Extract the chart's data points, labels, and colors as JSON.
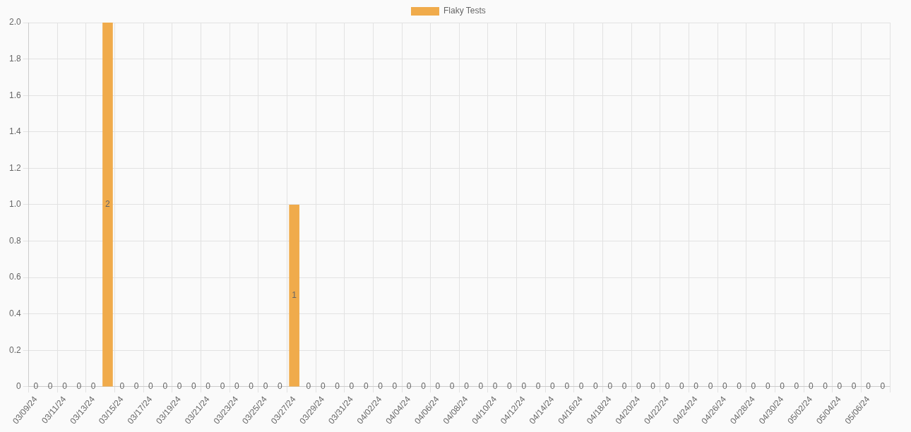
{
  "chart_data": {
    "type": "bar",
    "categories": [
      "03/09/24",
      null,
      "03/11/24",
      null,
      "03/13/24",
      null,
      "03/15/24",
      null,
      "03/17/24",
      null,
      "03/19/24",
      null,
      "03/21/24",
      null,
      "03/23/24",
      null,
      "03/25/24",
      null,
      "03/27/24",
      null,
      "03/29/24",
      null,
      "03/31/24",
      null,
      "04/02/24",
      null,
      "04/04/24",
      null,
      "04/06/24",
      null,
      "04/08/24",
      null,
      "04/10/24",
      null,
      "04/12/24",
      null,
      "04/14/24",
      null,
      "04/16/24",
      null,
      "04/18/24",
      null,
      "04/20/24",
      null,
      "04/22/24",
      null,
      "04/24/24",
      null,
      "04/26/24",
      null,
      "04/28/24",
      null,
      "04/30/24",
      null,
      "05/02/24",
      null,
      "05/04/24",
      null,
      "05/06/24",
      null
    ],
    "series": [
      {
        "name": "Flaky Tests",
        "color": "#f0ab4b",
        "values": [
          0,
          0,
          0,
          0,
          0,
          2,
          0,
          0,
          0,
          0,
          0,
          0,
          0,
          0,
          0,
          0,
          0,
          0,
          1,
          0,
          0,
          0,
          0,
          0,
          0,
          0,
          0,
          0,
          0,
          0,
          0,
          0,
          0,
          0,
          0,
          0,
          0,
          0,
          0,
          0,
          0,
          0,
          0,
          0,
          0,
          0,
          0,
          0,
          0,
          0,
          0,
          0,
          0,
          0,
          0,
          0,
          0,
          0,
          0,
          0
        ]
      }
    ],
    "ylim": [
      0,
      2
    ],
    "yticks": [
      0,
      0.2,
      0.4,
      0.6,
      0.8,
      {
        "value": 1,
        "label": "1.0"
      },
      1.2,
      1.4,
      1.6,
      1.8,
      {
        "value": 2,
        "label": "2.0"
      }
    ],
    "grid": true,
    "legend": "top",
    "data_labels": true
  }
}
